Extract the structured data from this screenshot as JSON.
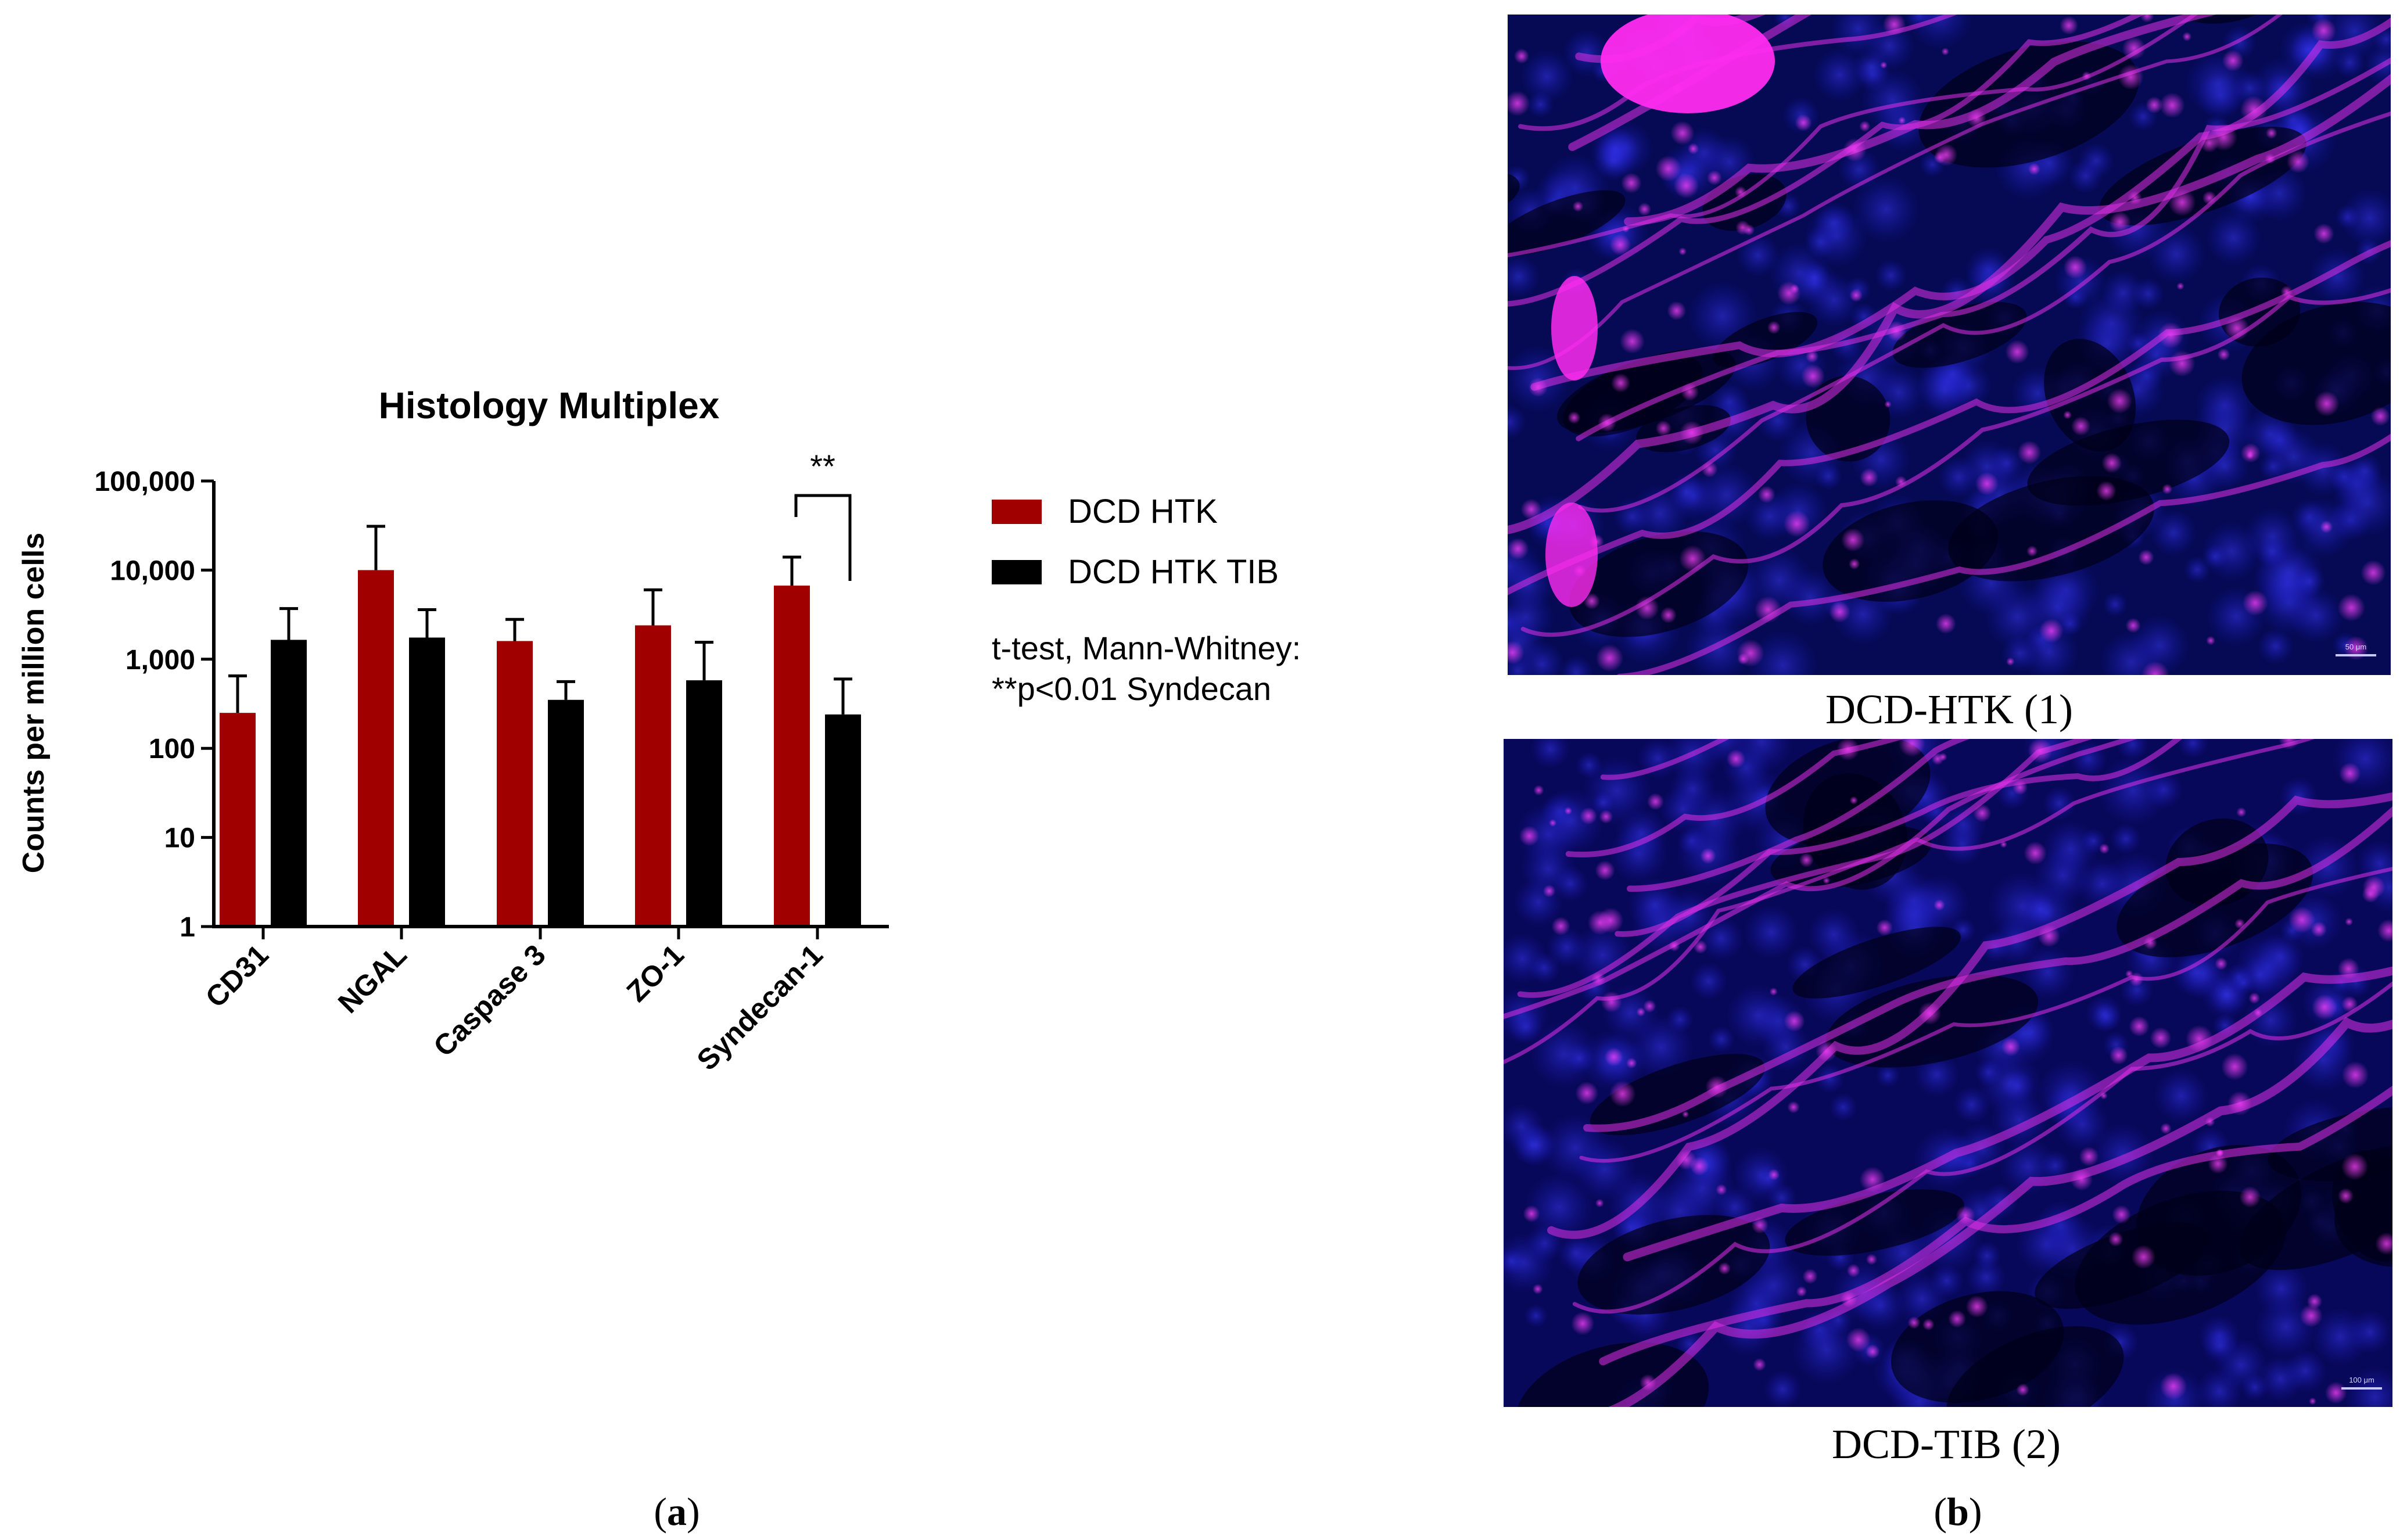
{
  "panel_a": {
    "label_open": "(",
    "label_letter": "a",
    "label_close": ")"
  },
  "panel_b": {
    "label_open": "(",
    "label_letter": "b",
    "label_close": ")",
    "images": [
      {
        "caption": "DCD-HTK (1)",
        "scale_bar": "50 μm"
      },
      {
        "caption": "DCD-TIB (2)",
        "scale_bar": "100 μm"
      }
    ]
  },
  "chart_data": {
    "type": "bar",
    "title": "Histology Multiplex",
    "xlabel": "",
    "ylabel": "Counts per million cells",
    "yscale": "log",
    "ylim": [
      1,
      100000
    ],
    "yticks": [
      1,
      10,
      100,
      1000,
      10000,
      100000
    ],
    "ytick_labels": [
      "1",
      "10",
      "100",
      "1,000",
      "10,000",
      "100,000"
    ],
    "categories": [
      "CD31",
      "NGAL",
      "Caspase 3",
      "ZO-1",
      "Syndecan-1"
    ],
    "series": [
      {
        "name": "DCD HTK",
        "color": "#a00000",
        "values": [
          250,
          10000,
          1600,
          2400,
          6700
        ],
        "error_upper": [
          650,
          31000,
          2800,
          6000,
          14000
        ]
      },
      {
        "name": "DCD HTK TIB",
        "color": "#000000",
        "values": [
          1650,
          1750,
          350,
          580,
          240
        ],
        "error_upper": [
          3700,
          3600,
          560,
          1550,
          600
        ]
      }
    ],
    "legend_position": "right",
    "significance": {
      "category": "Syndecan-1",
      "label": "**"
    },
    "annotation": [
      "t-test, Mann-Whitney:",
      "**p<0.01 Syndecan"
    ],
    "grid": false
  }
}
